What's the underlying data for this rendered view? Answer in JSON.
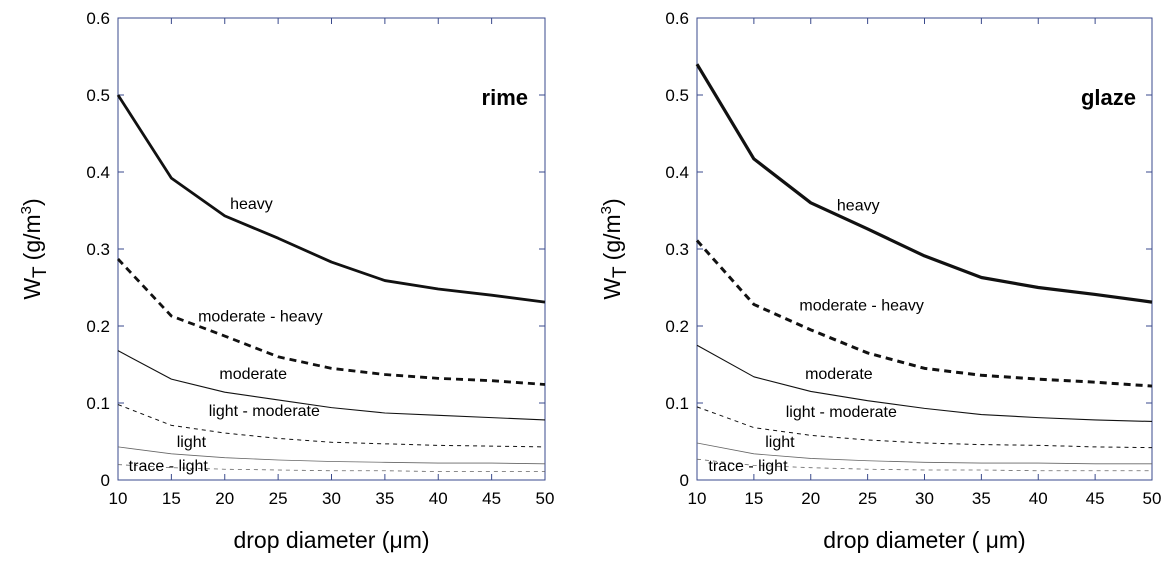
{
  "chart_data": [
    {
      "type": "line",
      "title": "rime",
      "xlabel": "drop diameter (μm)",
      "ylabel_main": "W",
      "ylabel_sub": "T",
      "ylabel_rest": "(g/m",
      "ylabel_sup": "3",
      "ylabel_end": ")",
      "xlim": [
        10,
        50
      ],
      "ylim": [
        0,
        0.6
      ],
      "xticks": [
        "10",
        "15",
        "20",
        "25",
        "30",
        "35",
        "40",
        "45",
        "50"
      ],
      "yticks": [
        "0",
        "0.1",
        "0.2",
        "0.3",
        "0.4",
        "0.5",
        "0.6"
      ],
      "x": [
        10,
        15,
        20,
        25,
        30,
        35,
        40,
        45,
        50
      ],
      "grid": false,
      "axis_color": "#3a4a8c",
      "series": [
        {
          "name": "heavy",
          "style": "solid",
          "width": 2.8,
          "color": "#111111",
          "values": [
            0.5,
            0.392,
            0.343,
            0.314,
            0.283,
            0.259,
            0.248,
            0.24,
            0.231
          ],
          "label_at": [
            20.5,
            0.352
          ]
        },
        {
          "name": "moderate - heavy",
          "style": "dashed",
          "width": 2.8,
          "color": "#111111",
          "values": [
            0.287,
            0.213,
            0.187,
            0.16,
            0.145,
            0.137,
            0.132,
            0.129,
            0.124
          ],
          "label_at": [
            17.5,
            0.206
          ]
        },
        {
          "name": "moderate",
          "style": "solid",
          "width": 1.1,
          "color": "#111111",
          "values": [
            0.168,
            0.131,
            0.114,
            0.104,
            0.094,
            0.087,
            0.084,
            0.081,
            0.078
          ],
          "label_at": [
            19.5,
            0.131
          ]
        },
        {
          "name": "light - moderate",
          "style": "dashed",
          "width": 1.0,
          "color": "#111111",
          "values": [
            0.098,
            0.071,
            0.061,
            0.054,
            0.049,
            0.047,
            0.045,
            0.044,
            0.043
          ],
          "label_at": [
            18.5,
            0.083
          ]
        },
        {
          "name": "light",
          "style": "solid",
          "width": 0.8,
          "color": "#666666",
          "values": [
            0.043,
            0.034,
            0.029,
            0.026,
            0.024,
            0.023,
            0.022,
            0.022,
            0.021
          ],
          "label_at": [
            15.5,
            0.043
          ]
        },
        {
          "name": "trace - light",
          "style": "dashed",
          "width": 0.8,
          "color": "#666666",
          "values": [
            0.02,
            0.016,
            0.014,
            0.013,
            0.012,
            0.012,
            0.011,
            0.011,
            0.011
          ],
          "label_at": [
            11.0,
            0.012
          ]
        }
      ]
    },
    {
      "type": "line",
      "title": "glaze",
      "xlabel": "drop diameter ( μm)",
      "ylabel_main": "W",
      "ylabel_sub": "T",
      "ylabel_rest": "(g/m",
      "ylabel_sup": "3",
      "ylabel_end": ")",
      "xlim": [
        10,
        50
      ],
      "ylim": [
        0,
        0.6
      ],
      "xticks": [
        "10",
        "15",
        "20",
        "25",
        "30",
        "35",
        "40",
        "45",
        "50"
      ],
      "yticks": [
        "0",
        "0.1",
        "0.2",
        "0.3",
        "0.4",
        "0.5",
        "0.6"
      ],
      "x": [
        10,
        15,
        20,
        25,
        30,
        35,
        40,
        45,
        50
      ],
      "grid": false,
      "axis_color": "#3a4a8c",
      "series": [
        {
          "name": "heavy",
          "style": "solid",
          "width": 3.2,
          "color": "#111111",
          "values": [
            0.54,
            0.417,
            0.36,
            0.326,
            0.291,
            0.263,
            0.25,
            0.241,
            0.231
          ],
          "label_at": [
            22.3,
            0.35
          ]
        },
        {
          "name": "moderate - heavy",
          "style": "dashed",
          "width": 3.0,
          "color": "#111111",
          "values": [
            0.311,
            0.228,
            0.195,
            0.165,
            0.145,
            0.136,
            0.131,
            0.127,
            0.122
          ],
          "label_at": [
            19.0,
            0.22
          ]
        },
        {
          "name": "moderate",
          "style": "solid",
          "width": 1.1,
          "color": "#111111",
          "values": [
            0.175,
            0.134,
            0.115,
            0.103,
            0.093,
            0.085,
            0.081,
            0.078,
            0.076
          ],
          "label_at": [
            19.5,
            0.131
          ]
        },
        {
          "name": "light - moderate",
          "style": "dashed",
          "width": 1.0,
          "color": "#111111",
          "values": [
            0.095,
            0.068,
            0.058,
            0.052,
            0.048,
            0.046,
            0.045,
            0.043,
            0.042
          ],
          "label_at": [
            17.8,
            0.082
          ]
        },
        {
          "name": "light",
          "style": "solid",
          "width": 0.8,
          "color": "#666666",
          "values": [
            0.048,
            0.034,
            0.028,
            0.025,
            0.023,
            0.022,
            0.022,
            0.021,
            0.021
          ],
          "label_at": [
            16.0,
            0.043
          ]
        },
        {
          "name": "trace - light",
          "style": "dashed",
          "width": 0.8,
          "color": "#666666",
          "values": [
            0.027,
            0.019,
            0.016,
            0.014,
            0.013,
            0.013,
            0.012,
            0.012,
            0.012
          ],
          "label_at": [
            11.0,
            0.012
          ]
        }
      ]
    }
  ]
}
